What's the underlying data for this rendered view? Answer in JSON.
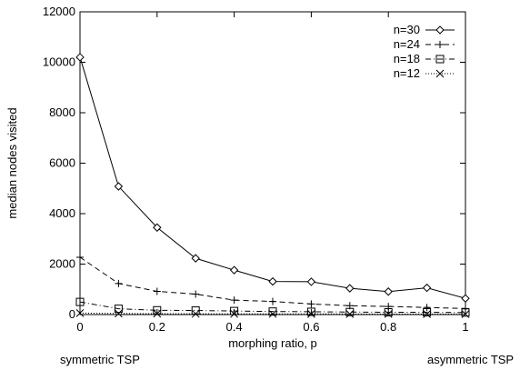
{
  "chart_data": {
    "type": "line",
    "xlabel": "morphing ratio, p",
    "ylabel": "median nodes visited",
    "xlim": [
      0,
      1
    ],
    "ylim": [
      0,
      12000
    ],
    "xticks": [
      "0",
      "0.2",
      "0.4",
      "0.6",
      "0.8",
      "1"
    ],
    "yticks": [
      "0",
      "2000",
      "4000",
      "6000",
      "8000",
      "10000",
      "12000"
    ],
    "x": [
      0,
      0.1,
      0.2,
      0.3,
      0.4,
      0.5,
      0.6,
      0.7,
      0.8,
      0.9,
      1.0
    ],
    "legend_position": "top-right",
    "grid": false,
    "series": [
      {
        "name": "n=30",
        "marker": "diamond",
        "dash": "solid",
        "values": [
          10200,
          5080,
          3450,
          2230,
          1760,
          1310,
          1300,
          1040,
          910,
          1060,
          640
        ]
      },
      {
        "name": "n=24",
        "marker": "plus",
        "dash": "dashed",
        "values": [
          2270,
          1230,
          920,
          810,
          570,
          520,
          420,
          350,
          320,
          280,
          240
        ]
      },
      {
        "name": "n=18",
        "marker": "square",
        "dash": "dashdot",
        "values": [
          500,
          230,
          170,
          160,
          140,
          120,
          110,
          100,
          90,
          90,
          80
        ]
      },
      {
        "name": "n=12",
        "marker": "cross",
        "dash": "dotted",
        "values": [
          60,
          40,
          35,
          30,
          28,
          25,
          22,
          20,
          20,
          18,
          15
        ]
      }
    ]
  },
  "annotations": {
    "left": "symmetric TSP",
    "right": "asymmetric TSP"
  }
}
